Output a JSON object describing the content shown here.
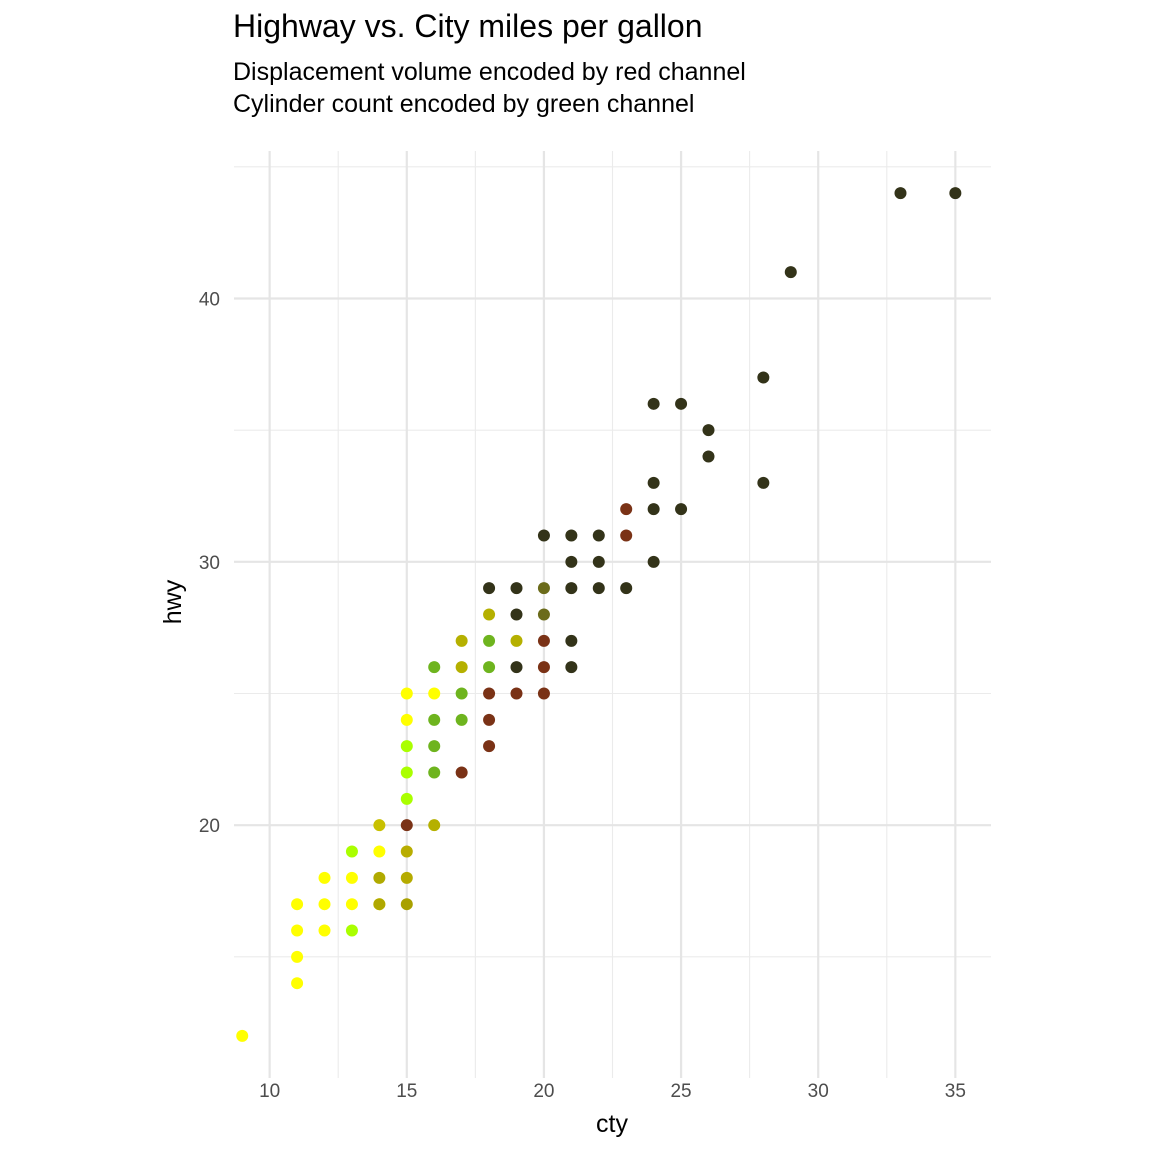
{
  "chart_data": {
    "type": "scatter",
    "title": "Highway vs. City miles per gallon",
    "subtitle": [
      "Displacement volume encoded by red channel",
      "Cylinder count encoded by green channel"
    ],
    "xlabel": "cty",
    "ylabel": "hwy",
    "xlim": [
      8.7,
      36.3
    ],
    "ylim": [
      10.4,
      45.6
    ],
    "x_ticks": [
      10,
      15,
      20,
      25,
      30,
      35
    ],
    "y_ticks": [
      20,
      30,
      40
    ],
    "grid": true,
    "points": [
      {
        "x": 9,
        "y": 12,
        "color": "#ffff00"
      },
      {
        "x": 11,
        "y": 14,
        "color": "#ffff00"
      },
      {
        "x": 11,
        "y": 15,
        "color": "#ffff00"
      },
      {
        "x": 11,
        "y": 16,
        "color": "#ffff00"
      },
      {
        "x": 11,
        "y": 17,
        "color": "#ffff00"
      },
      {
        "x": 12,
        "y": 16,
        "color": "#ffff00"
      },
      {
        "x": 12,
        "y": 17,
        "color": "#ffff00"
      },
      {
        "x": 12,
        "y": 18,
        "color": "#ffff00"
      },
      {
        "x": 13,
        "y": 16,
        "color": "#aaff00"
      },
      {
        "x": 13,
        "y": 17,
        "color": "#ffff00"
      },
      {
        "x": 13,
        "y": 18,
        "color": "#ffff00"
      },
      {
        "x": 13,
        "y": 19,
        "color": "#aaff00"
      },
      {
        "x": 14,
        "y": 17,
        "color": "#ffff00"
      },
      {
        "x": 14,
        "y": 17,
        "color": "#b0a800"
      },
      {
        "x": 14,
        "y": 18,
        "color": "#b0aa00"
      },
      {
        "x": 14,
        "y": 19,
        "color": "#ffff00"
      },
      {
        "x": 14,
        "y": 20,
        "color": "#c8c000"
      },
      {
        "x": 15,
        "y": 17,
        "color": "#a9a100"
      },
      {
        "x": 15,
        "y": 18,
        "color": "#b5ab00"
      },
      {
        "x": 15,
        "y": 19,
        "color": "#b8ad00"
      },
      {
        "x": 15,
        "y": 20,
        "color": "#7a3216"
      },
      {
        "x": 15,
        "y": 21,
        "color": "#aaff00"
      },
      {
        "x": 15,
        "y": 22,
        "color": "#aaff00"
      },
      {
        "x": 15,
        "y": 23,
        "color": "#aaff00"
      },
      {
        "x": 15,
        "y": 24,
        "color": "#ffff00"
      },
      {
        "x": 15,
        "y": 25,
        "color": "#ffff00"
      },
      {
        "x": 16,
        "y": 20,
        "color": "#b5b000"
      },
      {
        "x": 16,
        "y": 22,
        "color": "#6eb41e"
      },
      {
        "x": 16,
        "y": 23,
        "color": "#6eb41e"
      },
      {
        "x": 16,
        "y": 24,
        "color": "#6eb41e"
      },
      {
        "x": 16,
        "y": 25,
        "color": "#ffff00"
      },
      {
        "x": 16,
        "y": 26,
        "color": "#6eb41e"
      },
      {
        "x": 17,
        "y": 22,
        "color": "#7a3216"
      },
      {
        "x": 17,
        "y": 24,
        "color": "#6eb41e"
      },
      {
        "x": 17,
        "y": 25,
        "color": "#6eb41e"
      },
      {
        "x": 17,
        "y": 26,
        "color": "#b5b000"
      },
      {
        "x": 17,
        "y": 27,
        "color": "#b5b000"
      },
      {
        "x": 18,
        "y": 23,
        "color": "#7a3216"
      },
      {
        "x": 18,
        "y": 24,
        "color": "#7a3216"
      },
      {
        "x": 18,
        "y": 25,
        "color": "#7a3216"
      },
      {
        "x": 18,
        "y": 26,
        "color": "#6eb41e"
      },
      {
        "x": 18,
        "y": 27,
        "color": "#6eb41e"
      },
      {
        "x": 18,
        "y": 28,
        "color": "#b5b000"
      },
      {
        "x": 18,
        "y": 29,
        "color": "#333319"
      },
      {
        "x": 19,
        "y": 25,
        "color": "#7a3216"
      },
      {
        "x": 19,
        "y": 26,
        "color": "#333319"
      },
      {
        "x": 19,
        "y": 27,
        "color": "#b5b000"
      },
      {
        "x": 19,
        "y": 28,
        "color": "#333319"
      },
      {
        "x": 19,
        "y": 29,
        "color": "#333319"
      },
      {
        "x": 20,
        "y": 25,
        "color": "#7a3216"
      },
      {
        "x": 20,
        "y": 26,
        "color": "#7a3216"
      },
      {
        "x": 20,
        "y": 27,
        "color": "#7a3216"
      },
      {
        "x": 20,
        "y": 28,
        "color": "#6b6b1a"
      },
      {
        "x": 20,
        "y": 29,
        "color": "#6b6b1a"
      },
      {
        "x": 20,
        "y": 31,
        "color": "#333319"
      },
      {
        "x": 21,
        "y": 26,
        "color": "#333319"
      },
      {
        "x": 21,
        "y": 27,
        "color": "#333319"
      },
      {
        "x": 21,
        "y": 29,
        "color": "#333319"
      },
      {
        "x": 21,
        "y": 30,
        "color": "#333319"
      },
      {
        "x": 21,
        "y": 31,
        "color": "#333319"
      },
      {
        "x": 22,
        "y": 29,
        "color": "#333319"
      },
      {
        "x": 22,
        "y": 30,
        "color": "#333319"
      },
      {
        "x": 22,
        "y": 31,
        "color": "#333319"
      },
      {
        "x": 23,
        "y": 29,
        "color": "#333319"
      },
      {
        "x": 23,
        "y": 31,
        "color": "#7a3216"
      },
      {
        "x": 23,
        "y": 32,
        "color": "#7a3216"
      },
      {
        "x": 24,
        "y": 30,
        "color": "#333319"
      },
      {
        "x": 24,
        "y": 32,
        "color": "#333319"
      },
      {
        "x": 24,
        "y": 33,
        "color": "#333319"
      },
      {
        "x": 24,
        "y": 36,
        "color": "#333319"
      },
      {
        "x": 25,
        "y": 32,
        "color": "#333319"
      },
      {
        "x": 25,
        "y": 36,
        "color": "#333319"
      },
      {
        "x": 26,
        "y": 34,
        "color": "#333319"
      },
      {
        "x": 26,
        "y": 35,
        "color": "#333319"
      },
      {
        "x": 28,
        "y": 33,
        "color": "#333319"
      },
      {
        "x": 28,
        "y": 37,
        "color": "#333319"
      },
      {
        "x": 29,
        "y": 41,
        "color": "#333319"
      },
      {
        "x": 33,
        "y": 44,
        "color": "#333319"
      },
      {
        "x": 35,
        "y": 44,
        "color": "#333319"
      }
    ]
  }
}
